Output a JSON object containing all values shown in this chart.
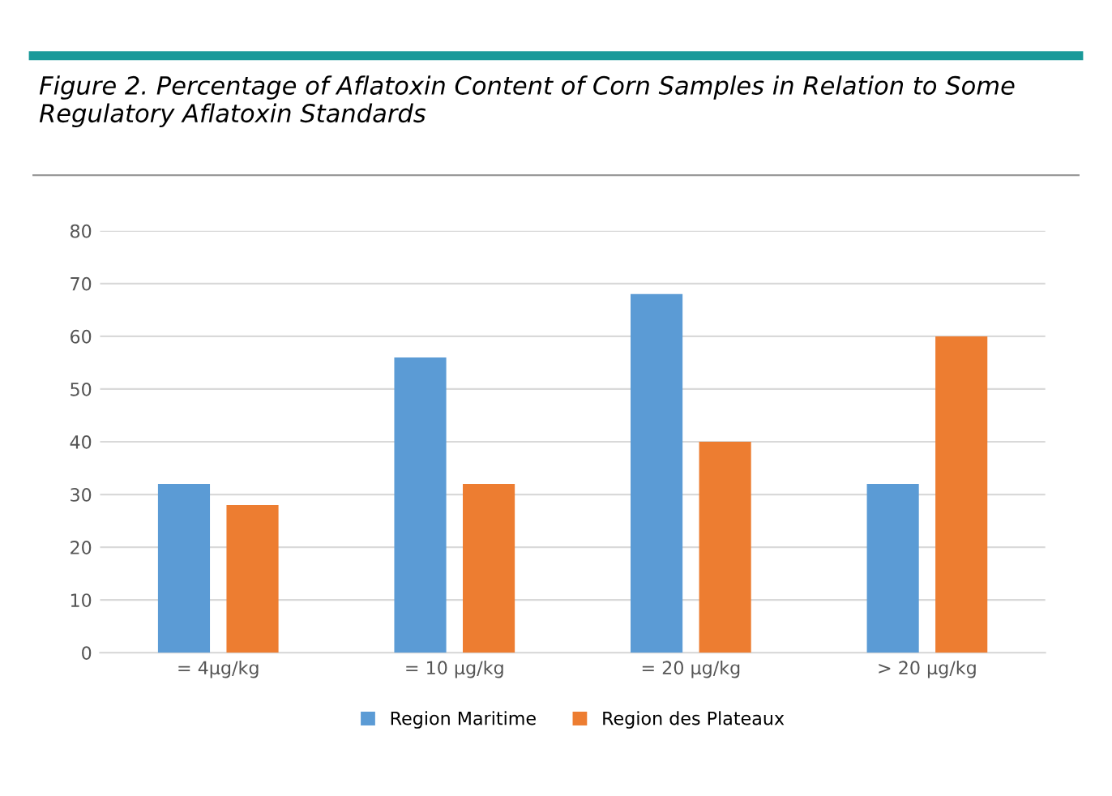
{
  "chart_data": {
    "type": "bar",
    "title": "Figure 2. Percentage of Aflatoxin Content of Corn Samples in Relation to Some Regulatory Aflatoxin Standards",
    "categories": [
      "= 4µg/kg",
      "= 10 µg/kg",
      "= 20 µg/kg",
      "> 20 µg/kg"
    ],
    "series": [
      {
        "name": "Region Maritime",
        "color": "#5b9bd5",
        "values": [
          32,
          56,
          68,
          32
        ]
      },
      {
        "name": "Region des Plateaux",
        "color": "#ed7d31",
        "values": [
          28,
          32,
          40,
          60
        ]
      }
    ],
    "ylim": [
      0,
      80
    ],
    "yticks": [
      0,
      10,
      20,
      30,
      40,
      50,
      60,
      70,
      80
    ],
    "grid": "y",
    "legend": "bottom"
  }
}
